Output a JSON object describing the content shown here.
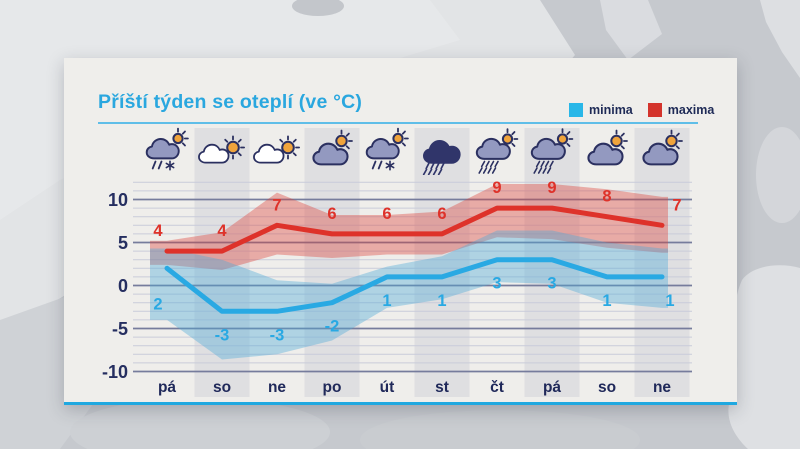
{
  "panel": {
    "title": "Příští týden se oteplí (ve °C)"
  },
  "legend": {
    "items": [
      {
        "label": "minima",
        "color": "#29B7E8"
      },
      {
        "label": "maxima",
        "color": "#D4342C"
      }
    ]
  },
  "chart_data": {
    "type": "line",
    "title": "Příští týden se oteplí (ve °C)",
    "unit": "°C",
    "categories": [
      "pá",
      "so",
      "ne",
      "po",
      "út",
      "st",
      "čt",
      "pá",
      "so",
      "ne"
    ],
    "day_icons": [
      "sun-cloud-sleet",
      "sun-cloud-white",
      "sun-cloud-white",
      "sun-cloud",
      "sun-cloud-sleet",
      "rain-cloud-dark",
      "sun-cloud-rain",
      "sun-cloud-rain",
      "sun-cloud",
      "sun-cloud"
    ],
    "series": [
      {
        "name": "maxima",
        "color": "#DE322A",
        "values": [
          4,
          4,
          7,
          6,
          6,
          6,
          9,
          9,
          8,
          7
        ],
        "band_upper": [
          5.2,
          6.2,
          10.8,
          8.2,
          8.2,
          8.6,
          11.8,
          11.8,
          11.2,
          10.3
        ],
        "band_lower": [
          2.4,
          1.8,
          3.6,
          3.2,
          3.6,
          3.6,
          5.6,
          5.4,
          4.4,
          3.8
        ],
        "band_color": "rgba(222,64,56,0.38)"
      },
      {
        "name": "minima",
        "color": "#29A9E3",
        "values": [
          2,
          -3,
          -3,
          -2,
          1,
          1,
          3,
          3,
          1,
          1
        ],
        "band_upper": [
          4.3,
          3.0,
          0.6,
          0.2,
          2.2,
          3.4,
          6.4,
          6.4,
          5.0,
          4.3
        ],
        "band_lower": [
          -4.0,
          -8.6,
          -8.0,
          -6.4,
          -2.6,
          -1.6,
          0.4,
          0.2,
          -2.0,
          -2.6
        ],
        "band_color": "rgba(80,170,215,0.40)"
      }
    ],
    "yticks": [
      10,
      5,
      0,
      -5,
      -10
    ],
    "ylim": [
      -10,
      12
    ],
    "grid": true,
    "legend_position": "top-right"
  }
}
